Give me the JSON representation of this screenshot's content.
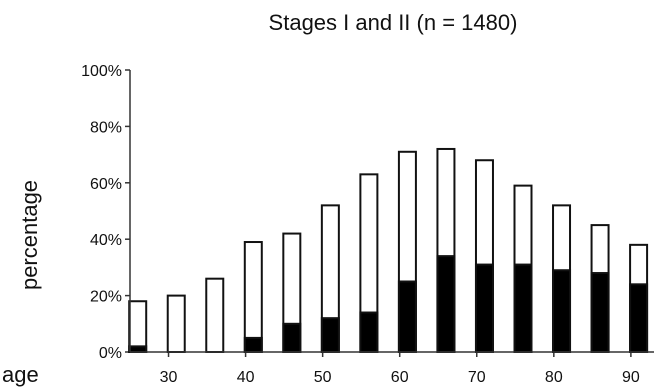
{
  "chart_data": {
    "type": "bar",
    "title": "Stages I and II (n = 1480)",
    "xlabel": "age",
    "ylabel": "percentage",
    "ylim": [
      0,
      100
    ],
    "y_ticks": [
      "0%",
      "20%",
      "40%",
      "60%",
      "80%",
      "100%"
    ],
    "y_tick_values": [
      0,
      20,
      40,
      60,
      80,
      100
    ],
    "x_ticks": [
      "30",
      "40",
      "50",
      "60",
      "70",
      "80",
      "90"
    ],
    "x_tick_values": [
      30,
      40,
      50,
      60,
      70,
      80,
      90
    ],
    "x_range": [
      25,
      93
    ],
    "bar_positions": [
      26,
      31,
      36,
      41,
      46,
      51,
      56,
      61,
      66,
      71,
      76,
      81,
      86,
      91
    ],
    "series": [
      {
        "values": [
          2,
          0,
          0,
          5,
          10,
          12,
          14,
          25,
          34,
          31,
          31,
          29,
          28,
          24
        ],
        "color": "#000000"
      },
      {
        "values": [
          18,
          20,
          26,
          39,
          42,
          52,
          63,
          71,
          72,
          68,
          59,
          52,
          45,
          38
        ],
        "color": "#ffffff"
      }
    ],
    "grid": false,
    "legend": "none"
  }
}
